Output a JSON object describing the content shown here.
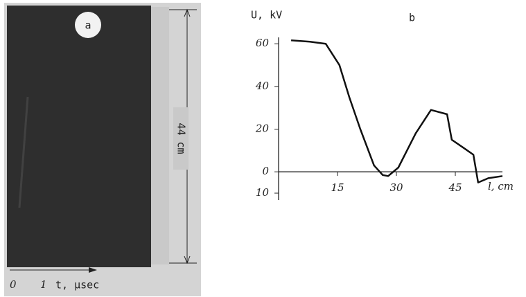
{
  "panel_a": {
    "label": "a",
    "length_label": "44 cm",
    "time_ticks": [
      "0",
      "1"
    ],
    "time_label": "t, µsec"
  },
  "chart_data": {
    "type": "line",
    "panel_label": "b",
    "ylabel": "U, kV",
    "xlabel": "l, cm",
    "x": [
      3.2,
      8,
      12,
      15.5,
      18,
      20.8,
      24.3,
      26.5,
      27.9,
      30.5,
      34.9,
      38.8,
      42.9,
      44.1,
      47.3,
      49.6,
      50.8,
      53.4,
      57
    ],
    "values": [
      61.6,
      61,
      60,
      50,
      35,
      20,
      3,
      -1.5,
      -2,
      2,
      18,
      29,
      27,
      15,
      11,
      8,
      -5,
      -3,
      -2
    ],
    "color": "#111111",
    "xlim": [
      0,
      57
    ],
    "ylim": [
      -10,
      63
    ],
    "xticks": [
      15,
      30,
      45
    ],
    "yticks": [
      60,
      40,
      20,
      0,
      {
        "value": -10,
        "label": "10"
      }
    ]
  }
}
